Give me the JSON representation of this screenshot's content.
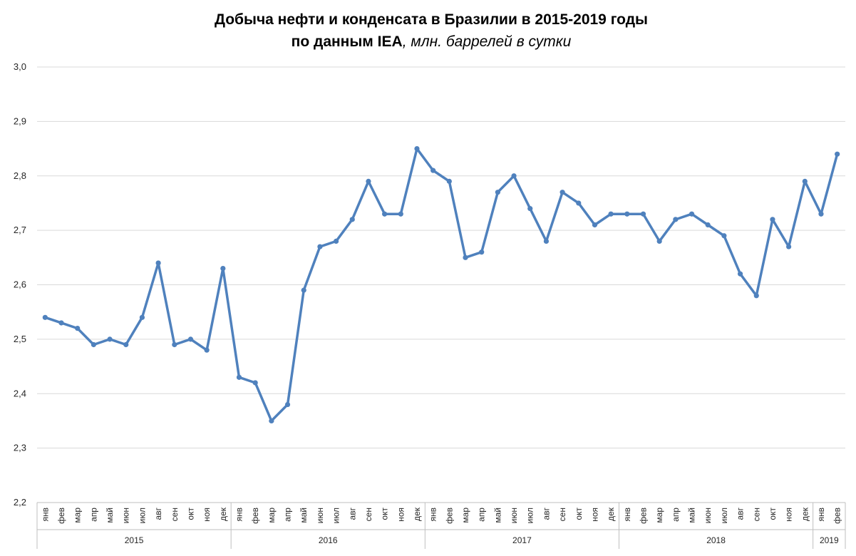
{
  "chart_data": {
    "type": "line",
    "title_line1": "Добыча нефти и конденсата в Бразилии в 2015-2019 годы",
    "title_line2_bold": "по данным IEA",
    "title_line2_italic": ", млн. баррелей в сутки",
    "xlabel": "",
    "ylabel": "",
    "ylim": [
      2.2,
      3.0
    ],
    "yticks": [
      "2,2",
      "2,3",
      "2,4",
      "2,5",
      "2,6",
      "2,7",
      "2,8",
      "2,9",
      "3,0"
    ],
    "grid": true,
    "legend": "none",
    "color": "#4f81bd",
    "groups": [
      {
        "label": "2015",
        "months": [
          "янв",
          "фев",
          "мар",
          "апр",
          "май",
          "июн",
          "июл",
          "авг",
          "сен",
          "окт",
          "ноя",
          "дек"
        ]
      },
      {
        "label": "2016",
        "months": [
          "янв",
          "фев",
          "мар",
          "апр",
          "май",
          "июн",
          "июл",
          "авг",
          "сен",
          "окт",
          "ноя",
          "дек"
        ]
      },
      {
        "label": "2017",
        "months": [
          "янв",
          "фев",
          "мар",
          "апр",
          "май",
          "июн",
          "июл",
          "авг",
          "сен",
          "окт",
          "ноя",
          "дек"
        ]
      },
      {
        "label": "2018",
        "months": [
          "янв",
          "фев",
          "мар",
          "апр",
          "май",
          "июн",
          "июл",
          "авг",
          "сен",
          "окт",
          "ноя",
          "дек"
        ]
      },
      {
        "label": "2019",
        "months": [
          "янв",
          "фев"
        ]
      }
    ],
    "values": [
      2.54,
      2.53,
      2.52,
      2.49,
      2.5,
      2.49,
      2.54,
      2.64,
      2.49,
      2.5,
      2.48,
      2.63,
      2.43,
      2.42,
      2.35,
      2.38,
      2.59,
      2.67,
      2.68,
      2.72,
      2.79,
      2.73,
      2.73,
      2.85,
      2.81,
      2.79,
      2.65,
      2.66,
      2.77,
      2.8,
      2.74,
      2.68,
      2.77,
      2.75,
      2.71,
      2.73,
      2.73,
      2.73,
      2.68,
      2.72,
      2.73,
      2.71,
      2.69,
      2.62,
      2.58,
      2.72,
      2.67,
      2.79,
      2.73,
      2.84
    ]
  }
}
